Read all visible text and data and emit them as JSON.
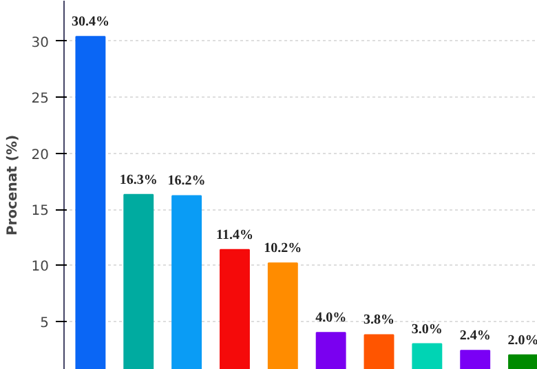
{
  "chart_data": {
    "type": "bar",
    "ylabel": "Procenat (%)",
    "categories": [
      null,
      null,
      null,
      null,
      null,
      null,
      null,
      null,
      null,
      null
    ],
    "values": [
      30.4,
      16.3,
      16.2,
      11.4,
      10.2,
      4.0,
      3.8,
      3.0,
      2.4,
      2.0
    ],
    "colors": [
      "#0a66f5",
      "#00aba0",
      "#0a9cf5",
      "#f50a0a",
      "#ff8c00",
      "#7a00f0",
      "#ff5500",
      "#00d4b4",
      "#7a00f5",
      "#008a00"
    ],
    "value_labels": [
      "30.4%",
      "16.3%",
      "16.2%",
      "11.4%",
      "10.2%",
      "4.0%",
      "3.8%",
      "3.0%",
      "2.4%",
      "2.0%"
    ],
    "ylim": [
      0.7,
      33.6
    ],
    "yticks": [
      5,
      10,
      15,
      20,
      25,
      30
    ],
    "grid": "y"
  }
}
